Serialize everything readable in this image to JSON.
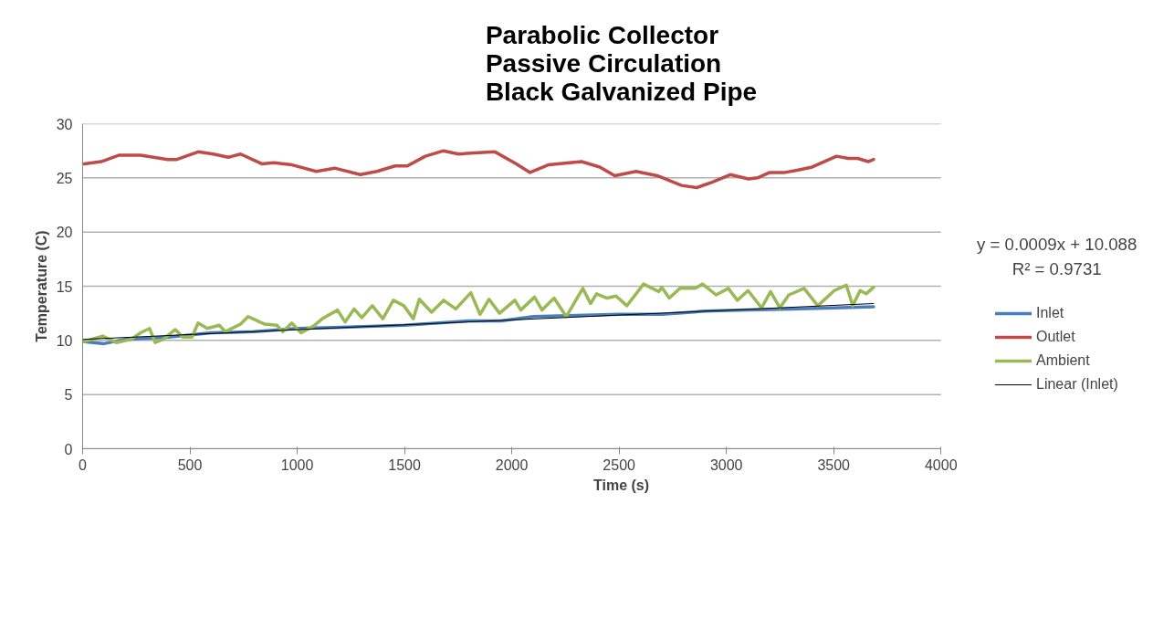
{
  "chart_data": {
    "type": "line",
    "title": "Parabolic Collector\nPassive Circulation\nBlack Galvanized Pipe",
    "xlabel": "Time (s)",
    "ylabel": "Temperature (C)",
    "xlim": [
      0,
      4000
    ],
    "xticks": [
      0,
      500,
      1000,
      1500,
      2000,
      2500,
      3000,
      3500,
      4000
    ],
    "ylim": [
      0,
      30
    ],
    "yticks": [
      0,
      5,
      10,
      15,
      20,
      25,
      30
    ],
    "grid": "y",
    "legend": "right",
    "annotations": [
      "y = 0.0009x + 10.088",
      "R² = 0.9731"
    ],
    "series": [
      {
        "name": "Inlet",
        "color": "#4a7ebb",
        "x": [
          0,
          100,
          200,
          400,
          600,
          800,
          1000,
          1200,
          1500,
          1800,
          1950,
          2100,
          2300,
          2500,
          2700,
          2900,
          3100,
          3300,
          3500,
          3686
        ],
        "values": [
          9.9,
          9.7,
          10.1,
          10.3,
          10.7,
          10.8,
          11.1,
          11.2,
          11.4,
          11.8,
          11.8,
          12.2,
          12.3,
          12.4,
          12.4,
          12.7,
          12.8,
          12.9,
          13.0,
          13.1
        ]
      },
      {
        "name": "Outlet",
        "color": "#be4b48",
        "x": [
          8,
          86,
          171,
          270,
          397,
          439,
          538,
          609,
          679,
          736,
          835,
          891,
          976,
          1089,
          1174,
          1294,
          1371,
          1456,
          1513,
          1597,
          1682,
          1752,
          1823,
          1922,
          2021,
          2085,
          2170,
          2325,
          2410,
          2480,
          2579,
          2678,
          2791,
          2862,
          2933,
          3018,
          3103,
          3145,
          3202,
          3273,
          3329,
          3400,
          3513,
          3569,
          3612,
          3661,
          3686
        ],
        "values": [
          26.3,
          26.5,
          27.1,
          27.1,
          26.7,
          26.7,
          27.4,
          27.2,
          26.9,
          27.2,
          26.3,
          26.4,
          26.2,
          25.6,
          25.9,
          25.3,
          25.6,
          26.1,
          26.1,
          27.0,
          27.5,
          27.2,
          27.3,
          27.4,
          26.3,
          25.5,
          26.2,
          26.5,
          26.0,
          25.2,
          25.6,
          25.2,
          24.3,
          24.1,
          24.6,
          25.3,
          24.9,
          25.0,
          25.5,
          25.5,
          25.7,
          26.0,
          27.0,
          26.8,
          26.8,
          26.5,
          26.7
        ]
      },
      {
        "name": "Ambient",
        "color": "#98b954",
        "x": [
          8,
          93,
          157,
          227,
          270,
          312,
          338,
          376,
          432,
          467,
          510,
          538,
          581,
          637,
          665,
          736,
          771,
          849,
          905,
          933,
          975,
          1018,
          1075,
          1117,
          1188,
          1223,
          1265,
          1301,
          1350,
          1399,
          1448,
          1497,
          1541,
          1569,
          1626,
          1682,
          1739,
          1809,
          1852,
          1894,
          1943,
          2014,
          2042,
          2106,
          2141,
          2197,
          2254,
          2331,
          2367,
          2395,
          2444,
          2486,
          2536,
          2579,
          2614,
          2685,
          2699,
          2734,
          2783,
          2853,
          2889,
          2952,
          3009,
          3051,
          3101,
          3164,
          3206,
          3249,
          3291,
          3362,
          3426,
          3503,
          3559,
          3589,
          3623,
          3651,
          3686
        ],
        "values": [
          9.9,
          10.4,
          9.8,
          10.1,
          10.7,
          11.1,
          9.8,
          10.1,
          11.0,
          10.3,
          10.3,
          11.6,
          11.1,
          11.4,
          10.8,
          11.5,
          12.2,
          11.5,
          11.4,
          10.8,
          11.6,
          10.7,
          11.3,
          12.0,
          12.8,
          11.7,
          12.9,
          12.1,
          13.2,
          12.0,
          13.7,
          13.2,
          12.0,
          13.8,
          12.6,
          13.7,
          12.9,
          14.4,
          12.4,
          13.8,
          12.5,
          13.7,
          12.8,
          14.0,
          12.8,
          13.9,
          12.2,
          14.8,
          13.4,
          14.3,
          13.9,
          14.1,
          13.2,
          14.3,
          15.2,
          14.5,
          14.9,
          13.9,
          14.8,
          14.8,
          15.2,
          14.2,
          14.8,
          13.7,
          14.6,
          13.0,
          14.5,
          13.0,
          14.2,
          14.8,
          13.2,
          14.6,
          15.1,
          13.2,
          14.6,
          14.3,
          14.9
        ]
      },
      {
        "name": "Linear (Inlet)",
        "color": "#000000",
        "x": [
          0,
          3686
        ],
        "values": [
          10.09,
          13.4
        ]
      }
    ]
  }
}
